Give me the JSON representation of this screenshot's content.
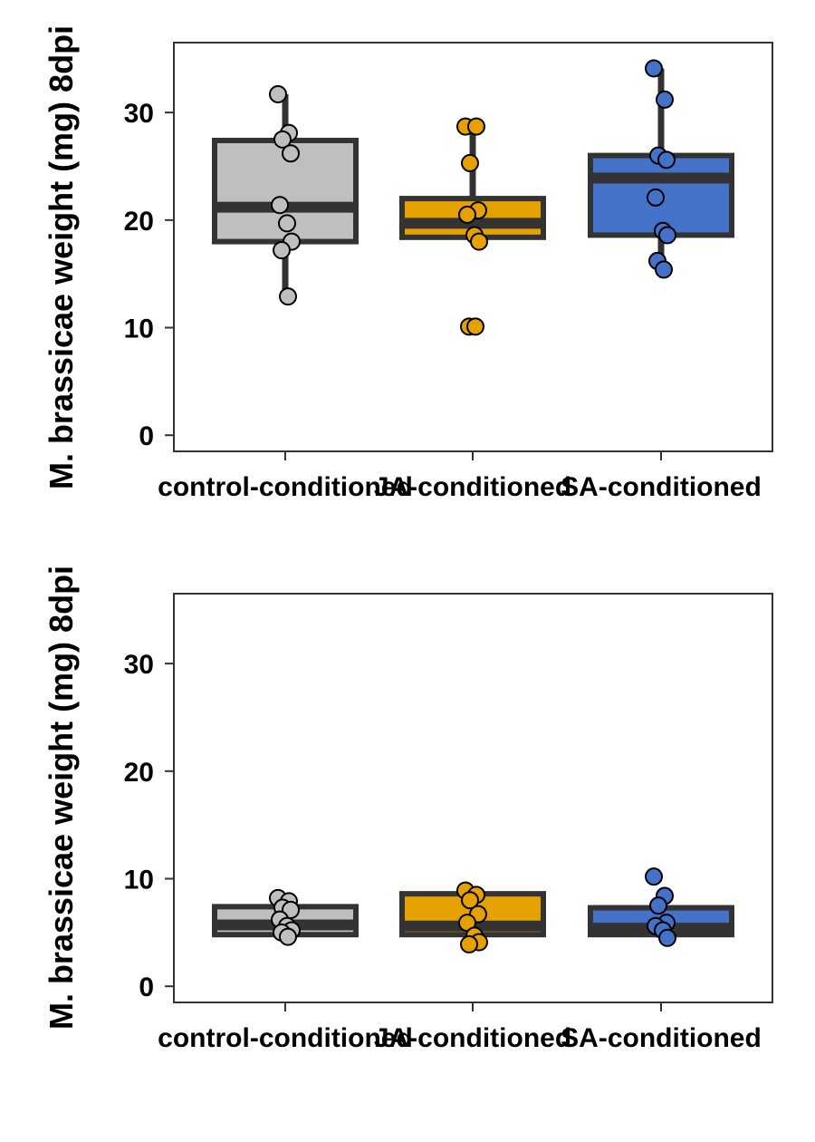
{
  "colors": {
    "control-conditioned": "#bfbfbf",
    "JA-conditioned": "#e4a100",
    "SA-conditioned": "#4472c8",
    "box_outline": "#333333",
    "point_outline": "#000000",
    "panel_border": "#333333"
  },
  "chart_data": [
    {
      "type": "box",
      "ylabel": "M. brassicae weight (mg) 8dpi",
      "ylim": [
        -1.5,
        36.5
      ],
      "yticks": [
        0,
        10,
        20,
        30
      ],
      "categories": [
        "control-conditioned",
        "JA-conditioned",
        "SA-conditioned"
      ],
      "grid": false,
      "series": [
        {
          "category": "control-conditioned",
          "box": {
            "whisker_low": 12.9,
            "q1": 18.0,
            "median": 21.2,
            "q3": 27.4,
            "whisker_high": 31.7
          },
          "points": [
            31.7,
            28.1,
            27.5,
            26.2,
            21.4,
            19.7,
            18.0,
            17.2,
            12.9
          ]
        },
        {
          "category": "JA-conditioned",
          "box": {
            "whisker_low": 17.9,
            "q1": 18.4,
            "median": 19.7,
            "q3": 22.0,
            "whisker_high": 28.7
          },
          "mean_line": 18.8,
          "points": [
            28.7,
            28.7,
            25.3,
            20.9,
            20.5,
            18.6,
            18.0,
            10.1,
            10.1
          ]
        },
        {
          "category": "SA-conditioned",
          "box": {
            "whisker_low": 15.4,
            "q1": 18.6,
            "median": 23.9,
            "q3": 26.0,
            "whisker_high": 34.1
          },
          "points": [
            34.1,
            31.2,
            26.0,
            25.6,
            22.1,
            19.0,
            18.6,
            16.2,
            15.4
          ]
        }
      ]
    },
    {
      "type": "box",
      "ylabel": "M. brassicae weight (mg) 8dpi",
      "ylim": [
        -1.5,
        36.5
      ],
      "yticks": [
        0,
        10,
        20,
        30
      ],
      "categories": [
        "control-conditioned",
        "JA-conditioned",
        "SA-conditioned"
      ],
      "grid": false,
      "series": [
        {
          "category": "control-conditioned",
          "box": {
            "whisker_low": 4.8,
            "q1": 4.8,
            "median": 5.7,
            "q3": 7.4,
            "whisker_high": 7.4
          },
          "mean_line": 6.7,
          "points": [
            8.2,
            7.9,
            7.3,
            7.1,
            6.2,
            5.6,
            5.2,
            5.0,
            4.6
          ]
        },
        {
          "category": "JA-conditioned",
          "box": {
            "whisker_low": 4.8,
            "q1": 4.8,
            "median": 5.6,
            "q3": 8.6,
            "whisker_high": 8.6
          },
          "mean_line": 8.0,
          "points": [
            8.9,
            8.5,
            8.0,
            6.7,
            5.9,
            4.7,
            4.1,
            3.9
          ]
        },
        {
          "category": "SA-conditioned",
          "box": {
            "whisker_low": 4.8,
            "q1": 4.8,
            "median": 5.4,
            "q3": 7.3,
            "whisker_high": 7.3
          },
          "mean_line": 6.5,
          "points": [
            10.2,
            8.4,
            7.5,
            5.9,
            5.6,
            5.2,
            4.5
          ]
        }
      ]
    }
  ]
}
